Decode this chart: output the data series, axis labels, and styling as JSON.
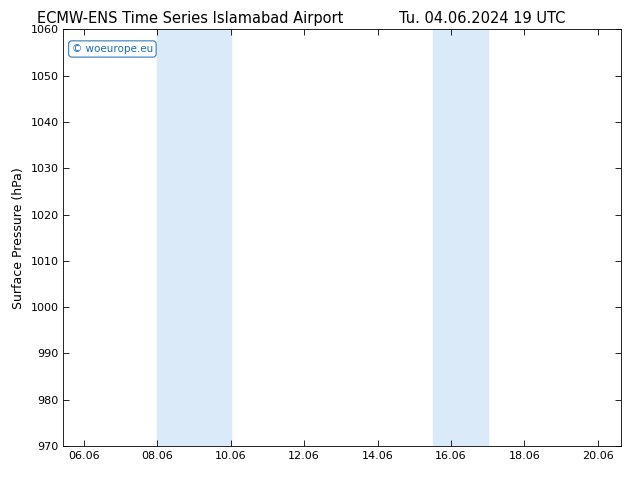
{
  "title_left": "ECMW-ENS Time Series Islamabad Airport",
  "title_right": "Tu. 04.06.2024 19 UTC",
  "ylabel": "Surface Pressure (hPa)",
  "ylim": [
    970,
    1060
  ],
  "yticks": [
    970,
    980,
    990,
    1000,
    1010,
    1020,
    1030,
    1040,
    1050,
    1060
  ],
  "xlim": [
    5.5,
    20.7
  ],
  "xticks": [
    6.06,
    8.06,
    10.06,
    12.06,
    14.06,
    16.06,
    18.06,
    20.06
  ],
  "xtick_labels": [
    "06.06",
    "08.06",
    "10.06",
    "12.06",
    "14.06",
    "16.06",
    "18.06",
    "20.06"
  ],
  "shaded_bands": [
    {
      "x_start": 8.06,
      "x_end": 10.06
    },
    {
      "x_start": 15.56,
      "x_end": 17.06
    }
  ],
  "shade_color": "#daeaf8",
  "watermark_text": "© woeurope.eu",
  "watermark_color": "#1a6bb5",
  "bg_color": "#ffffff",
  "title_fontsize": 10.5,
  "ylabel_fontsize": 9,
  "tick_fontsize": 8
}
